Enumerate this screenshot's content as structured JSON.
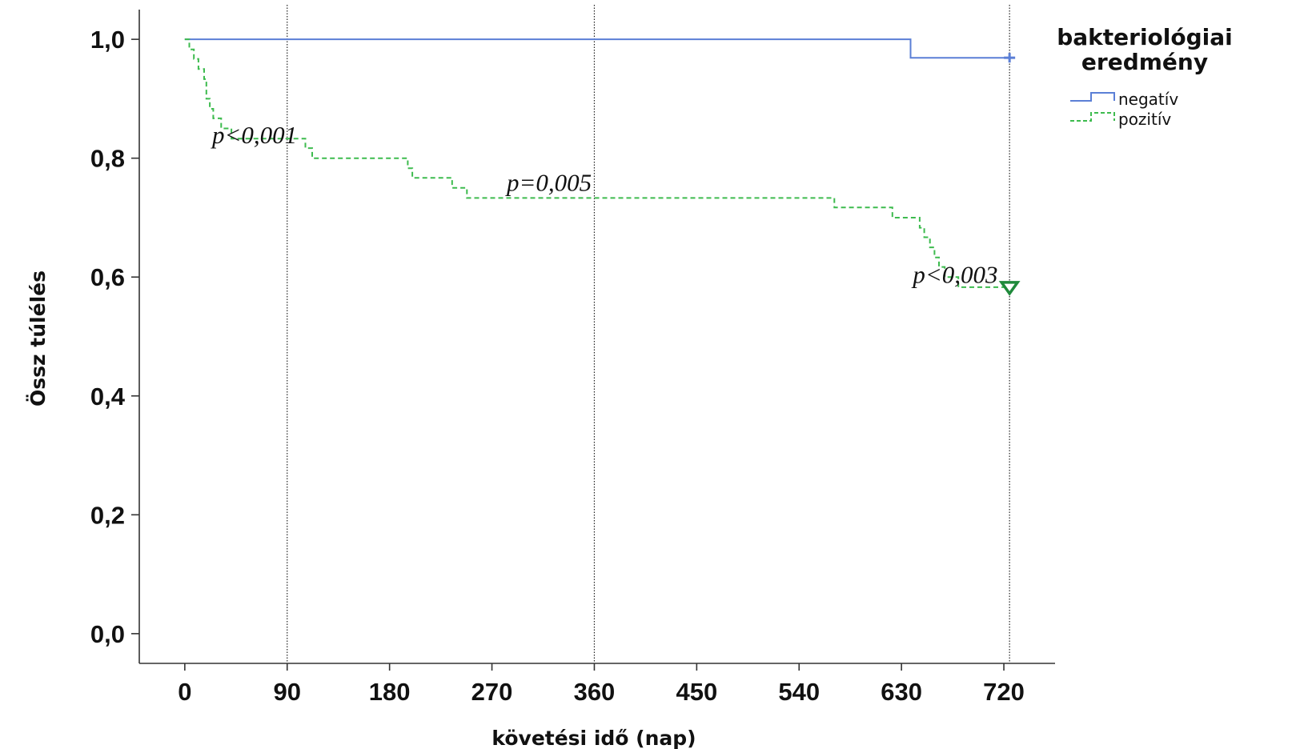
{
  "chart_data": {
    "type": "line",
    "subtype": "kaplan-meier",
    "xlabel": "követési idő (nap)",
    "ylabel": "Össz túlélés",
    "xticks": [
      "0",
      "90",
      "180",
      "270",
      "360",
      "450",
      "540",
      "630",
      "720"
    ],
    "yticks": [
      "0,0",
      "0,2",
      "0,4",
      "0,6",
      "0,8",
      "1,0"
    ],
    "xlim": [
      -40,
      765
    ],
    "ylim": [
      -0.05,
      1.05
    ],
    "reference_lines_x": [
      90,
      360,
      725
    ],
    "legend": {
      "title_lines": [
        "bakteriológiai",
        "eredmény"
      ],
      "placement": "top-right"
    },
    "series": [
      {
        "name": "negatív",
        "color": "#5b7fd6",
        "dash": "solid",
        "censor_marker": "plus",
        "steps": [
          [
            0,
            1.0
          ],
          [
            638,
            1.0
          ],
          [
            638,
            0.969
          ],
          [
            725,
            0.969
          ]
        ]
      },
      {
        "name": "pozitív",
        "color": "#3dbb4e",
        "dash": "dashed",
        "censor_marker": "triangle-down",
        "steps": [
          [
            0,
            1.0
          ],
          [
            4,
            1.0
          ],
          [
            4,
            0.983
          ],
          [
            8,
            0.983
          ],
          [
            8,
            0.967
          ],
          [
            12,
            0.967
          ],
          [
            12,
            0.95
          ],
          [
            17,
            0.95
          ],
          [
            17,
            0.933
          ],
          [
            19,
            0.933
          ],
          [
            19,
            0.9
          ],
          [
            22,
            0.9
          ],
          [
            22,
            0.883
          ],
          [
            25,
            0.883
          ],
          [
            25,
            0.867
          ],
          [
            32,
            0.867
          ],
          [
            32,
            0.85
          ],
          [
            41,
            0.85
          ],
          [
            41,
            0.833
          ],
          [
            106,
            0.833
          ],
          [
            106,
            0.817
          ],
          [
            112,
            0.817
          ],
          [
            112,
            0.8
          ],
          [
            196,
            0.8
          ],
          [
            196,
            0.783
          ],
          [
            200,
            0.783
          ],
          [
            200,
            0.767
          ],
          [
            235,
            0.767
          ],
          [
            235,
            0.75
          ],
          [
            248,
            0.75
          ],
          [
            248,
            0.733
          ],
          [
            571,
            0.733
          ],
          [
            571,
            0.717
          ],
          [
            622,
            0.717
          ],
          [
            622,
            0.7
          ],
          [
            646,
            0.7
          ],
          [
            646,
            0.683
          ],
          [
            650,
            0.683
          ],
          [
            650,
            0.667
          ],
          [
            655,
            0.667
          ],
          [
            655,
            0.65
          ],
          [
            659,
            0.65
          ],
          [
            659,
            0.633
          ],
          [
            663,
            0.633
          ],
          [
            663,
            0.617
          ],
          [
            668,
            0.617
          ],
          [
            668,
            0.6
          ],
          [
            680,
            0.6
          ],
          [
            680,
            0.583
          ],
          [
            725,
            0.583
          ]
        ]
      }
    ],
    "annotations": [
      {
        "text": "p<0,001",
        "x": 24,
        "y": 0.825
      },
      {
        "text": "p=0,005",
        "x": 283,
        "y": 0.745
      },
      {
        "text": "p<0,003",
        "x": 640,
        "y": 0.59
      }
    ]
  }
}
